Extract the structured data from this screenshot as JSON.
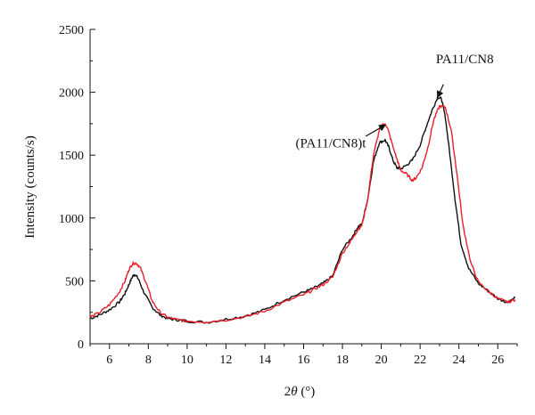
{
  "chart_data": {
    "type": "line",
    "title": "",
    "xlabel_main": "2",
    "xlabel_italic": "θ",
    "xlabel_unit": " (°)",
    "ylabel": "Intensity (counts/s)",
    "xlim": [
      5,
      27
    ],
    "ylim": [
      0,
      2500
    ],
    "xticks": [
      6,
      8,
      10,
      12,
      14,
      16,
      18,
      20,
      22,
      24,
      26
    ],
    "yticks": [
      0,
      500,
      1000,
      1500,
      2000,
      2500
    ],
    "grid": false,
    "legend": "none",
    "series": [
      {
        "color": "#111111",
        "x": [
          5,
          5.5,
          6,
          6.5,
          6.8,
          7,
          7.2,
          7.35,
          7.5,
          7.8,
          8.2,
          8.6,
          9,
          9.5,
          10,
          11,
          12,
          13,
          14,
          15,
          16,
          16.5,
          17,
          17.5,
          18,
          18.5,
          18.8,
          19,
          19.3,
          19.6,
          19.9,
          20.2,
          20.4,
          20.6,
          20.8,
          21,
          21.3,
          21.6,
          22,
          22.3,
          22.6,
          22.9,
          23.1,
          23.3,
          23.5,
          23.8,
          24.1,
          24.5,
          25,
          25.5,
          26,
          26.5,
          26.9
        ],
        "values": [
          200,
          230,
          270,
          330,
          400,
          470,
          540,
          550,
          510,
          400,
          290,
          230,
          200,
          190,
          180,
          170,
          195,
          220,
          270,
          350,
          410,
          440,
          480,
          540,
          750,
          850,
          930,
          950,
          1150,
          1450,
          1600,
          1620,
          1560,
          1460,
          1400,
          1390,
          1420,
          1460,
          1580,
          1720,
          1850,
          1960,
          1950,
          1800,
          1550,
          1150,
          800,
          600,
          480,
          420,
          360,
          330,
          370
        ]
      },
      {
        "color": "#e8202a",
        "x": [
          5,
          5.5,
          6,
          6.5,
          6.8,
          7,
          7.2,
          7.4,
          7.6,
          7.9,
          8.2,
          8.6,
          9,
          9.5,
          10,
          11,
          12,
          13,
          14,
          15,
          16,
          16.5,
          17,
          17.5,
          18,
          18.5,
          18.8,
          19,
          19.3,
          19.6,
          19.9,
          20.1,
          20.3,
          20.5,
          20.8,
          21,
          21.3,
          21.6,
          21.8,
          22.1,
          22.4,
          22.7,
          23,
          23.3,
          23.6,
          23.9,
          24.2,
          24.6,
          25,
          25.5,
          26,
          26.5,
          26.9
        ],
        "values": [
          210,
          250,
          310,
          410,
          500,
          590,
          640,
          640,
          600,
          480,
          340,
          250,
          210,
          190,
          180,
          175,
          190,
          215,
          260,
          330,
          390,
          430,
          470,
          530,
          720,
          830,
          910,
          940,
          1150,
          1500,
          1700,
          1750,
          1730,
          1620,
          1470,
          1380,
          1350,
          1300,
          1320,
          1400,
          1560,
          1780,
          1890,
          1880,
          1700,
          1350,
          950,
          650,
          490,
          420,
          360,
          330,
          350
        ]
      }
    ],
    "annotations": [
      {
        "text": "PA11/CN8",
        "arrow_from": [
          23.2,
          2020
        ],
        "arrow_to": [
          22.9,
          1960
        ]
      },
      {
        "text": "(PA11/CN8)t",
        "arrow_from": [
          19.2,
          1650
        ],
        "arrow_to": [
          20.3,
          1740
        ]
      }
    ]
  }
}
